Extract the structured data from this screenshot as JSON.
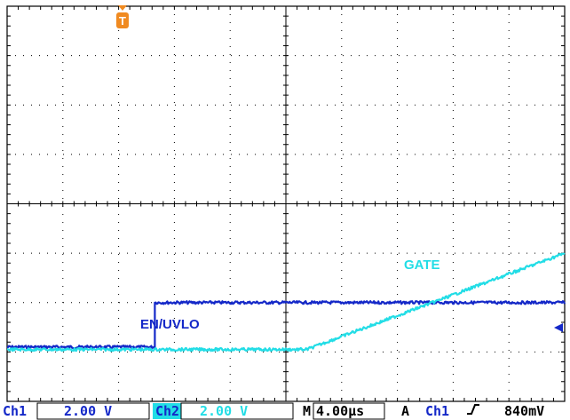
{
  "chart_data": {
    "type": "line",
    "grid": true,
    "divisions": {
      "x": 10,
      "y": 8
    },
    "time_per_div_us": 4.0,
    "volts_per_div": {
      "ch1": 2.0,
      "ch2": 2.0
    },
    "x_unit": "µs",
    "y_unit": "V",
    "trigger_time_us": 0,
    "ylim_div": [
      -4,
      4
    ],
    "series": [
      {
        "name": "EN/UVLO",
        "channel": "Ch1",
        "color": "#1428c8",
        "x": [
          0,
          10.6,
          10.6,
          40
        ],
        "y_div": [
          -2.9,
          -2.9,
          -2.0,
          -2.0
        ]
      },
      {
        "name": "GATE",
        "channel": "Ch2",
        "color": "#22dde6",
        "x": [
          0,
          21.5,
          40
        ],
        "y_div": [
          -2.95,
          -2.95,
          -1.0
        ]
      }
    ],
    "trace_labels": [
      {
        "text": "GATE",
        "color": "#22dde6"
      },
      {
        "text": "EN/UVLO",
        "color": "#1428c8"
      }
    ],
    "trigger_marker": {
      "text": "T",
      "color": "#f08a20"
    }
  },
  "status_bar": {
    "ch1_name": "Ch1",
    "ch1_scale": "2.00 V",
    "ch2_name": "Ch2",
    "ch2_scale": "2.00 V",
    "timebase_prefix": "M",
    "timebase": "4.00µs",
    "trigger_mode": "A",
    "trigger_source": "Ch1",
    "trigger_level": "840mV"
  }
}
